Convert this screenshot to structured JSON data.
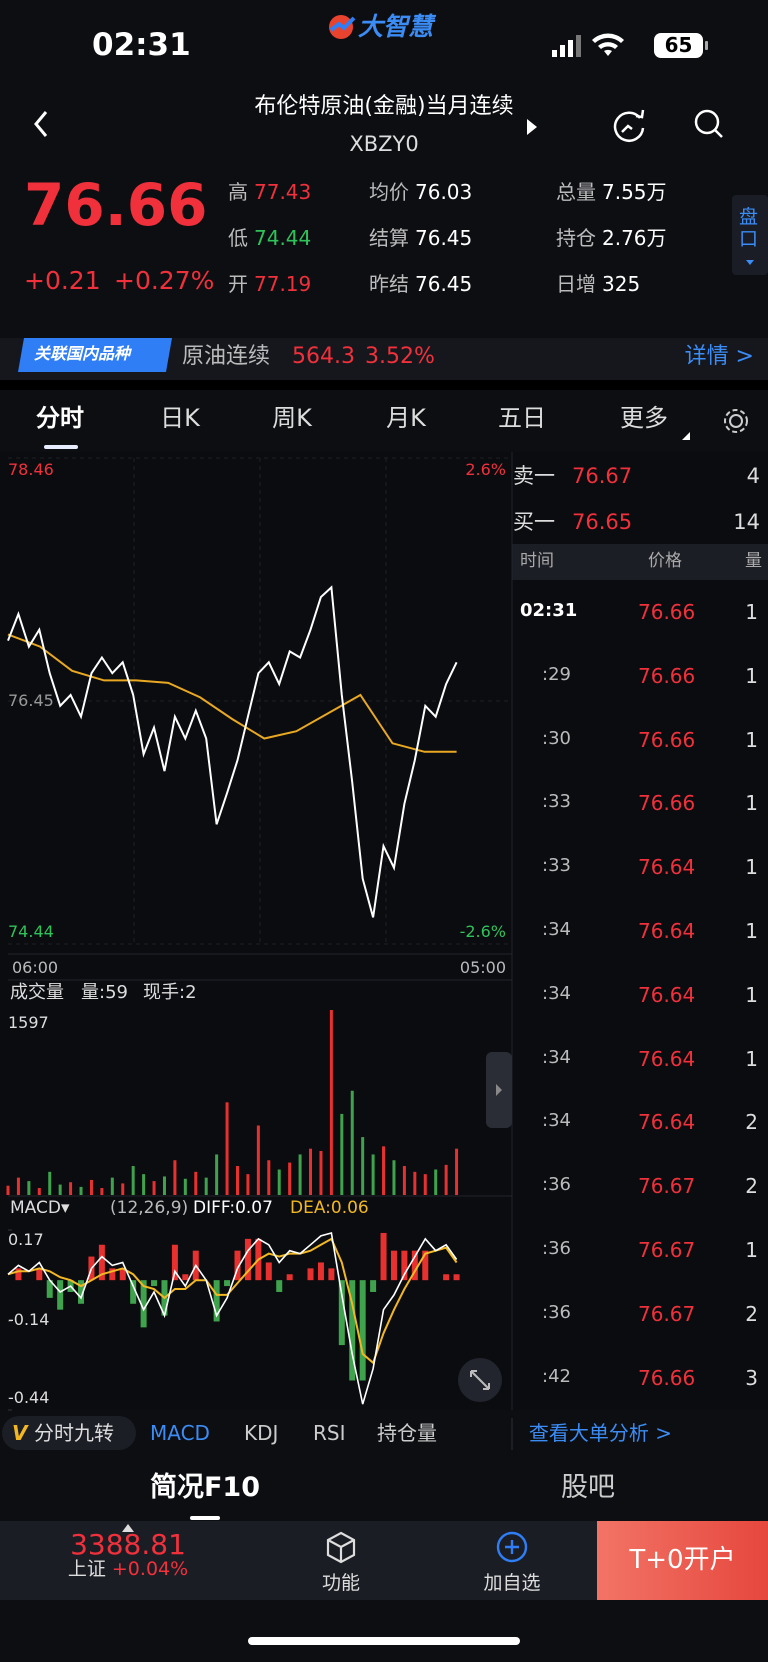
{
  "status": {
    "time": "02:31",
    "brand": "大智慧",
    "battery": "65"
  },
  "header": {
    "title": "布伦特原油(金融)当月连续",
    "code": "XBZY0"
  },
  "quote": {
    "price": "76.66",
    "change": "+0.21",
    "change_pct": "+0.27%",
    "side_tab": "盘口",
    "stats": [
      {
        "label": "高",
        "value": "77.43"
      },
      {
        "label": "低",
        "value": "74.44"
      },
      {
        "label": "开",
        "value": "77.19"
      },
      {
        "label": "均价",
        "value": "76.03"
      },
      {
        "label": "结算",
        "value": "76.45"
      },
      {
        "label": "昨结",
        "value": "76.45"
      },
      {
        "label": "总量",
        "value": "7.55万"
      },
      {
        "label": "持仓",
        "value": "2.76万"
      },
      {
        "label": "日增",
        "value": "325"
      }
    ]
  },
  "related": {
    "tag": "关联国内品种",
    "name": "原油连续",
    "price": "564.3",
    "pct": "3.52%",
    "link": "详情 >"
  },
  "tabs": [
    "分时",
    "日K",
    "周K",
    "月K",
    "五日",
    "更多"
  ],
  "chart_data": {
    "type": "line",
    "ylim": [
      74.44,
      78.46
    ],
    "yticks": [
      74.44,
      76.45,
      78.46
    ],
    "pct_labels": [
      "2.6%",
      "-2.6%"
    ],
    "x_labels": [
      "06:00",
      "05:00"
    ],
    "values": [
      76.95,
      77.17,
      76.9,
      77.04,
      76.68,
      76.41,
      76.5,
      76.32,
      76.68,
      76.81,
      76.68,
      76.77,
      76.5,
      76.01,
      76.23,
      75.87,
      76.32,
      76.14,
      76.37,
      76.14,
      75.43,
      75.69,
      75.96,
      76.32,
      76.68,
      76.77,
      76.59,
      76.86,
      76.81,
      77.04,
      77.31,
      77.39,
      76.5,
      75.78,
      74.98,
      74.66,
      75.25,
      75.07,
      75.6,
      75.96,
      76.41,
      76.32,
      76.59,
      76.77
    ],
    "average": [
      77.0,
      76.9,
      76.7,
      76.62,
      76.62,
      76.6,
      76.48,
      76.3,
      76.14,
      76.2,
      76.35,
      76.5,
      76.1,
      76.03,
      76.03
    ]
  },
  "volume": {
    "title": "成交量",
    "vol": "量:59",
    "hand": "现手:2",
    "ymax": 1597,
    "values": [
      80,
      150,
      120,
      60,
      200,
      90,
      110,
      70,
      130,
      60,
      150,
      100,
      250,
      180,
      120,
      160,
      300,
      140,
      200,
      150,
      350,
      800,
      250,
      180,
      600,
      300,
      220,
      280,
      350,
      400,
      380,
      1597,
      700,
      900,
      500,
      350,
      420,
      300,
      250,
      200,
      180,
      220,
      260,
      400
    ]
  },
  "macd": {
    "label": "MACD▾",
    "params": "(12,26,9)",
    "diff": "DIFF:0.07",
    "dea": "DEA:0.06",
    "ylim": [
      -0.44,
      0.17
    ],
    "yticks": [
      -0.44,
      -0.14,
      0.17
    ],
    "diff_values": [
      0.02,
      0.05,
      0.03,
      0.06,
      0.0,
      -0.04,
      -0.02,
      -0.06,
      0.04,
      0.08,
      0.05,
      0.06,
      -0.02,
      -0.1,
      -0.04,
      -0.12,
      0.03,
      -0.02,
      0.05,
      0.0,
      -0.12,
      -0.06,
      0.04,
      0.1,
      0.14,
      0.12,
      0.06,
      0.1,
      0.09,
      0.12,
      0.15,
      0.16,
      -0.05,
      -0.25,
      -0.42,
      -0.3,
      -0.1,
      -0.05,
      0.02,
      0.08,
      0.14,
      0.1,
      0.12,
      0.07
    ],
    "dea_values": [
      0.02,
      0.03,
      0.03,
      0.04,
      0.03,
      0.01,
      0.0,
      -0.02,
      0.0,
      0.02,
      0.03,
      0.04,
      0.02,
      -0.02,
      -0.03,
      -0.06,
      -0.03,
      -0.03,
      0.0,
      0.0,
      -0.05,
      -0.05,
      -0.01,
      0.03,
      0.07,
      0.09,
      0.08,
      0.09,
      0.09,
      0.1,
      0.12,
      0.14,
      0.06,
      -0.08,
      -0.25,
      -0.28,
      -0.18,
      -0.1,
      -0.03,
      0.03,
      0.09,
      0.1,
      0.11,
      0.06
    ],
    "histogram": [
      0,
      0.04,
      0,
      0.04,
      -0.06,
      -0.1,
      -0.04,
      -0.08,
      0.08,
      0.12,
      0.04,
      0.04,
      -0.08,
      -0.16,
      -0.02,
      -0.12,
      0.12,
      0.02,
      0.1,
      0,
      -0.14,
      -0.02,
      0.1,
      0.14,
      0.14,
      0.06,
      -0.04,
      0.02,
      0,
      0.04,
      0.06,
      0.04,
      -0.22,
      -0.34,
      -0.34,
      -0.04,
      0.16,
      0.1,
      0.1,
      0.1,
      0.1,
      0,
      0.02,
      0.02
    ]
  },
  "order_book": {
    "sell": {
      "label": "卖一",
      "price": "76.67",
      "vol": "4"
    },
    "buy": {
      "label": "买一",
      "price": "76.65",
      "vol": "14"
    }
  },
  "trades": {
    "headers": [
      "时间",
      "价格",
      "量"
    ],
    "rows": [
      [
        "02:31",
        "76.66",
        "1"
      ],
      [
        ":29",
        "76.66",
        "1"
      ],
      [
        ":30",
        "76.66",
        "1"
      ],
      [
        ":33",
        "76.66",
        "1"
      ],
      [
        ":33",
        "76.64",
        "1"
      ],
      [
        ":34",
        "76.64",
        "1"
      ],
      [
        ":34",
        "76.64",
        "1"
      ],
      [
        ":34",
        "76.64",
        "1"
      ],
      [
        ":34",
        "76.64",
        "2"
      ],
      [
        ":36",
        "76.67",
        "2"
      ],
      [
        ":36",
        "76.67",
        "1"
      ],
      [
        ":36",
        "76.67",
        "2"
      ],
      [
        ":42",
        "76.66",
        "3"
      ]
    ]
  },
  "indicator_tabs": {
    "special": "分时九转",
    "items": [
      "MACD",
      "KDJ",
      "RSI",
      "持仓量"
    ],
    "link": "查看大单分析 >"
  },
  "sections": [
    "简况F10",
    "股吧"
  ],
  "bottom": {
    "index_value": "3388.81",
    "index_name": "上证",
    "index_change": "+0.04%",
    "func": "功能",
    "add": "加自选",
    "cta": "T+0开户"
  }
}
